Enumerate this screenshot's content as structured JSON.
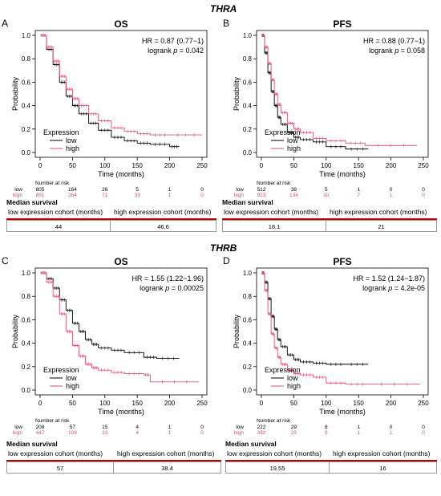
{
  "section_titles": {
    "top": "THRA",
    "bottom": "THRB"
  },
  "median_label": "Median survival",
  "col_low_label": "low expression cohort (months)",
  "col_high_label": "high expression cohort (months)",
  "colors": {
    "low": "#000000",
    "high": "#e05070",
    "median_line": "#c00000"
  },
  "panels": [
    {
      "letter": "A",
      "title": "OS",
      "hr_text": "HR = 0.87 (0.77−1)",
      "logrank_text": "logrank ",
      "p_label": "p",
      "p_text": " = 0.042",
      "risk": {
        "low": [
          "805",
          "164",
          "26",
          "5",
          "1",
          "0"
        ],
        "high": [
          "851",
          "264",
          "71",
          "33",
          "1",
          "0"
        ]
      },
      "median": {
        "low": "44",
        "high": "46.6"
      }
    },
    {
      "letter": "B",
      "title": "PFS",
      "hr_text": "HR = 0.88 (0.77−1)",
      "logrank_text": "logrank ",
      "p_label": "p",
      "p_text": " = 0.058",
      "risk": {
        "low": [
          "512",
          "38",
          "5",
          "1",
          "0",
          "0"
        ],
        "high": [
          "923",
          "134",
          "30",
          "7",
          "1",
          "0"
        ]
      },
      "median": {
        "low": "18.1",
        "high": "21"
      }
    },
    {
      "letter": "C",
      "title": "OS",
      "hr_text": "HR = 1.55 (1.22−1.96)",
      "logrank_text": "logrank ",
      "p_label": "p",
      "p_text": " = 0.00025",
      "risk": {
        "low": [
          "208",
          "57",
          "15",
          "4",
          "1",
          "0"
        ],
        "high": [
          "447",
          "109",
          "33",
          "4",
          "1",
          "0"
        ]
      },
      "median": {
        "low": "57",
        "high": "38.4"
      }
    },
    {
      "letter": "D",
      "title": "PFS",
      "hr_text": "HR = 1.52 (1.24−1.87)",
      "logrank_text": "logrank ",
      "p_label": "p",
      "p_text": " = 4.2e-05",
      "risk": {
        "low": [
          "222",
          "29",
          "8",
          "1",
          "0",
          "0"
        ],
        "high": [
          "392",
          "25",
          "8",
          "1",
          "1",
          "0"
        ]
      },
      "median": {
        "low": "19.55",
        "high": "16"
      }
    }
  ],
  "chart_data": [
    {
      "type": "line",
      "panel": "A",
      "title": "OS",
      "xlabel": "Time (months)",
      "ylabel": "Probability",
      "xlim": [
        0,
        250
      ],
      "ylim": [
        0,
        1
      ],
      "x_ticks": [
        "0",
        "50",
        "100",
        "150",
        "200",
        "250"
      ],
      "y_ticks": [
        "0.0",
        "0.2",
        "0.4",
        "0.6",
        "0.8",
        "1.0"
      ],
      "legend_title": "Expression",
      "legend_position": "bottom-left",
      "risk_title": "Number at risk",
      "series": [
        {
          "name": "low",
          "x": [
            0,
            10,
            20,
            30,
            40,
            50,
            60,
            75,
            90,
            110,
            130,
            150,
            170,
            200,
            215
          ],
          "y": [
            1,
            0.88,
            0.75,
            0.6,
            0.48,
            0.4,
            0.33,
            0.25,
            0.19,
            0.13,
            0.1,
            0.08,
            0.07,
            0.05,
            0.05
          ]
        },
        {
          "name": "high",
          "x": [
            0,
            10,
            20,
            30,
            40,
            50,
            60,
            75,
            90,
            110,
            130,
            150,
            170,
            200,
            250
          ],
          "y": [
            1,
            0.9,
            0.78,
            0.65,
            0.54,
            0.46,
            0.4,
            0.33,
            0.27,
            0.21,
            0.18,
            0.16,
            0.15,
            0.15,
            0.15
          ]
        }
      ]
    },
    {
      "type": "line",
      "panel": "B",
      "title": "PFS",
      "xlabel": "Time (months)",
      "ylabel": "Probability",
      "xlim": [
        0,
        250
      ],
      "ylim": [
        0,
        1
      ],
      "x_ticks": [
        "0",
        "50",
        "100",
        "150",
        "200",
        "250"
      ],
      "y_ticks": [
        "0.0",
        "0.2",
        "0.4",
        "0.6",
        "0.8",
        "1.0"
      ],
      "legend_title": "Expression",
      "legend_position": "bottom-left",
      "risk_title": "Number at risk",
      "series": [
        {
          "name": "low",
          "x": [
            0,
            5,
            10,
            15,
            20,
            25,
            30,
            40,
            50,
            60,
            80,
            100,
            130,
            165
          ],
          "y": [
            1,
            0.85,
            0.68,
            0.52,
            0.4,
            0.3,
            0.24,
            0.17,
            0.13,
            0.11,
            0.09,
            0.05,
            0.03,
            0.03
          ]
        },
        {
          "name": "high",
          "x": [
            0,
            5,
            10,
            15,
            20,
            25,
            30,
            40,
            50,
            60,
            80,
            100,
            130,
            160,
            240
          ],
          "y": [
            1,
            0.9,
            0.76,
            0.62,
            0.5,
            0.41,
            0.34,
            0.25,
            0.2,
            0.17,
            0.12,
            0.1,
            0.08,
            0.06,
            0.06
          ]
        }
      ]
    },
    {
      "type": "line",
      "panel": "C",
      "title": "OS",
      "xlabel": "Time (months)",
      "ylabel": "Probability",
      "xlim": [
        0,
        250
      ],
      "ylim": [
        0,
        1
      ],
      "x_ticks": [
        "0",
        "50",
        "100",
        "150",
        "200",
        "250"
      ],
      "y_ticks": [
        "0.0",
        "0.2",
        "0.4",
        "0.6",
        "0.8",
        "1.0"
      ],
      "legend_title": "Expression",
      "legend_position": "bottom-left",
      "risk_title": "Number at risk",
      "series": [
        {
          "name": "low",
          "x": [
            0,
            10,
            20,
            30,
            40,
            50,
            60,
            70,
            80,
            90,
            110,
            130,
            160,
            180,
            215
          ],
          "y": [
            1,
            0.95,
            0.87,
            0.77,
            0.68,
            0.57,
            0.5,
            0.43,
            0.39,
            0.36,
            0.34,
            0.32,
            0.28,
            0.27,
            0.27
          ]
        },
        {
          "name": "high",
          "x": [
            0,
            10,
            20,
            30,
            40,
            50,
            60,
            70,
            80,
            90,
            110,
            130,
            160,
            170,
            245
          ],
          "y": [
            1,
            0.92,
            0.8,
            0.65,
            0.5,
            0.38,
            0.29,
            0.22,
            0.19,
            0.17,
            0.15,
            0.14,
            0.13,
            0.07,
            0.07
          ]
        }
      ]
    },
    {
      "type": "line",
      "panel": "D",
      "title": "PFS",
      "xlabel": "Time (months)",
      "ylabel": "Probability",
      "xlim": [
        0,
        250
      ],
      "ylim": [
        0,
        1
      ],
      "x_ticks": [
        "0",
        "50",
        "100",
        "150",
        "200",
        "250"
      ],
      "y_ticks": [
        "0.0",
        "0.2",
        "0.4",
        "0.6",
        "0.8",
        "1.0"
      ],
      "legend_title": "Expression",
      "legend_position": "bottom-left",
      "risk_title": "Number at risk",
      "series": [
        {
          "name": "low",
          "x": [
            0,
            5,
            10,
            15,
            20,
            25,
            30,
            40,
            50,
            60,
            80,
            100,
            130,
            165
          ],
          "y": [
            1,
            0.92,
            0.78,
            0.63,
            0.52,
            0.43,
            0.37,
            0.3,
            0.26,
            0.24,
            0.23,
            0.22,
            0.22,
            0.22
          ]
        },
        {
          "name": "high",
          "x": [
            0,
            5,
            10,
            15,
            20,
            25,
            30,
            40,
            50,
            60,
            80,
            100,
            130,
            165,
            245
          ],
          "y": [
            1,
            0.85,
            0.65,
            0.48,
            0.36,
            0.28,
            0.22,
            0.17,
            0.14,
            0.13,
            0.11,
            0.06,
            0.05,
            0.05,
            0.05
          ]
        }
      ]
    }
  ]
}
